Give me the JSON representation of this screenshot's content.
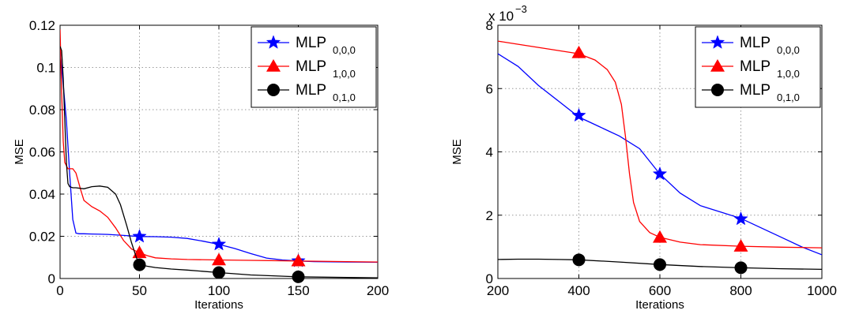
{
  "colors": {
    "mlp000": "#0000ff",
    "mlp100": "#ff0000",
    "mlp010": "#000000"
  },
  "chart_data": [
    {
      "type": "line",
      "xlabel": "Iterations",
      "ylabel": "MSE",
      "xlim": [
        0,
        200
      ],
      "ylim": [
        0,
        0.12
      ],
      "xticks": [
        0,
        50,
        100,
        150,
        200
      ],
      "yticks": [
        0,
        0.02,
        0.04,
        0.06,
        0.08,
        0.1,
        0.12
      ],
      "xtick_labels": [
        "0",
        "50",
        "100",
        "150",
        "200"
      ],
      "ytick_labels": [
        "0",
        "0.02",
        "0.04",
        "0.06",
        "0.08",
        "0.1",
        "0.12"
      ],
      "exponent_label": "",
      "exponent_power": "",
      "grid": true,
      "legend": "top-right",
      "series": [
        {
          "name": "MLP",
          "subscript": "0,0,0",
          "color": "#0000ff",
          "marker": "star",
          "x": [
            0,
            2,
            4,
            6,
            8,
            10,
            12,
            15,
            20,
            30,
            40,
            50,
            60,
            70,
            80,
            90,
            100,
            110,
            120,
            130,
            140,
            150,
            160,
            180,
            200
          ],
          "y": [
            0.108,
            0.092,
            0.075,
            0.05,
            0.028,
            0.0215,
            0.0212,
            0.0212,
            0.0211,
            0.0209,
            0.0204,
            0.0199,
            0.0198,
            0.0196,
            0.019,
            0.0177,
            0.0162,
            0.0142,
            0.0118,
            0.0097,
            0.0088,
            0.0083,
            0.008,
            0.0078,
            0.0077
          ],
          "markers_x": [
            50,
            100,
            150
          ],
          "markers_y": [
            0.0199,
            0.0162,
            0.0083
          ]
        },
        {
          "name": "MLP",
          "subscript": "1,0,0",
          "color": "#ff0000",
          "marker": "triangle",
          "x": [
            0,
            1,
            2,
            3,
            5,
            8,
            10,
            13,
            15,
            20,
            25,
            30,
            35,
            40,
            45,
            50,
            55,
            60,
            70,
            80,
            100,
            120,
            150,
            200
          ],
          "y": [
            0.118,
            0.088,
            0.065,
            0.055,
            0.052,
            0.052,
            0.05,
            0.042,
            0.037,
            0.034,
            0.032,
            0.029,
            0.024,
            0.018,
            0.014,
            0.0122,
            0.0108,
            0.0098,
            0.0093,
            0.009,
            0.0088,
            0.0086,
            0.0083,
            0.0078
          ],
          "markers_x": [
            50,
            100,
            150
          ],
          "markers_y": [
            0.0122,
            0.0088,
            0.0083
          ]
        },
        {
          "name": "MLP",
          "subscript": "0,1,0",
          "color": "#000000",
          "marker": "circle",
          "x": [
            0,
            1,
            2,
            3,
            4,
            5,
            6,
            8,
            10,
            15,
            20,
            25,
            30,
            35,
            38,
            42,
            45,
            48,
            50,
            55,
            60,
            70,
            80,
            100,
            120,
            150,
            200
          ],
          "y": [
            0.11,
            0.108,
            0.095,
            0.075,
            0.055,
            0.045,
            0.0435,
            0.043,
            0.043,
            0.0425,
            0.0435,
            0.0438,
            0.0432,
            0.04,
            0.035,
            0.025,
            0.017,
            0.01,
            0.0065,
            0.0058,
            0.0052,
            0.0045,
            0.004,
            0.0028,
            0.0017,
            0.0008,
            0.0003
          ],
          "markers_x": [
            50,
            100,
            150
          ],
          "markers_y": [
            0.0065,
            0.0028,
            0.0008
          ]
        }
      ]
    },
    {
      "type": "line",
      "xlabel": "Iterations",
      "ylabel": "MSE",
      "xlim": [
        200,
        1000
      ],
      "ylim": [
        0,
        0.008
      ],
      "xticks": [
        200,
        400,
        600,
        800,
        1000
      ],
      "yticks": [
        0,
        0.002,
        0.004,
        0.006,
        0.008
      ],
      "xtick_labels": [
        "200",
        "400",
        "600",
        "800",
        "1000"
      ],
      "ytick_labels": [
        "0",
        "2",
        "4",
        "6",
        "8"
      ],
      "exponent_label": "x 10",
      "exponent_power": "−3",
      "grid": true,
      "legend": "top-right",
      "series": [
        {
          "name": "MLP",
          "subscript": "0,0,0",
          "color": "#0000ff",
          "marker": "star",
          "x": [
            200,
            250,
            300,
            350,
            400,
            450,
            500,
            550,
            600,
            650,
            700,
            750,
            800,
            850,
            900,
            950,
            1000
          ],
          "y": [
            0.0071,
            0.0067,
            0.0061,
            0.0056,
            0.0051,
            0.0048,
            0.0045,
            0.0041,
            0.0033,
            0.0027,
            0.0023,
            0.0021,
            0.0019,
            0.0016,
            0.0013,
            0.001,
            0.00075
          ],
          "markers_x": [
            400,
            600,
            800
          ],
          "markers_y": [
            0.00515,
            0.0033,
            0.00188
          ]
        },
        {
          "name": "MLP",
          "subscript": "1,0,0",
          "color": "#ff0000",
          "marker": "triangle",
          "x": [
            200,
            250,
            300,
            350,
            400,
            440,
            470,
            490,
            505,
            515,
            525,
            535,
            550,
            575,
            600,
            650,
            700,
            800,
            900,
            1000
          ],
          "y": [
            0.0075,
            0.0074,
            0.0073,
            0.0072,
            0.0071,
            0.0069,
            0.0066,
            0.0062,
            0.0055,
            0.0045,
            0.0033,
            0.0024,
            0.0018,
            0.00145,
            0.0013,
            0.00115,
            0.00107,
            0.00102,
            0.00099,
            0.00097
          ],
          "markers_x": [
            400,
            600,
            800
          ],
          "markers_y": [
            0.00713,
            0.0013,
            0.00102
          ]
        },
        {
          "name": "MLP",
          "subscript": "0,1,0",
          "color": "#000000",
          "marker": "circle",
          "x": [
            200,
            250,
            300,
            350,
            400,
            500,
            600,
            700,
            800,
            900,
            1000
          ],
          "y": [
            0.0006,
            0.00061,
            0.00061,
            0.0006,
            0.00059,
            0.00052,
            0.00044,
            0.00038,
            0.00034,
            0.00031,
            0.00029
          ],
          "markers_x": [
            400,
            600,
            800
          ],
          "markers_y": [
            0.00059,
            0.00044,
            0.00034
          ]
        }
      ]
    }
  ]
}
